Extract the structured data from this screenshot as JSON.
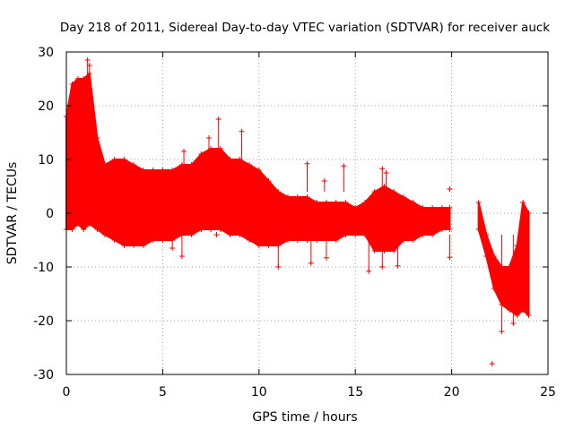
{
  "chart_data": {
    "type": "scatter",
    "title": "Day 218 of 2011, Sidereal Day-to-day VTEC variation (SDTVAR) for receiver auck",
    "xlabel": "GPS time / hours",
    "ylabel": "SDTVAR / TECUs",
    "xlim": [
      0,
      25
    ],
    "ylim": [
      -30,
      30
    ],
    "xticks": [
      0,
      5,
      10,
      15,
      20,
      25
    ],
    "yticks": [
      -30,
      -20,
      -10,
      0,
      10,
      20,
      30
    ],
    "xtick_labels": [
      "0",
      "5",
      "10",
      "15",
      "20",
      "25"
    ],
    "ytick_labels": [
      "-30",
      "-20",
      "-10",
      "0",
      "10",
      "20",
      "30"
    ],
    "grid": true,
    "marker": "plus",
    "color": "#ff0000",
    "series": [
      {
        "name": "SDTVAR",
        "envelope": {
          "x": [
            0.0,
            0.3,
            0.6,
            0.9,
            1.2,
            1.6,
            2.0,
            2.5,
            3.0,
            3.5,
            4.0,
            4.5,
            5.0,
            5.5,
            6.0,
            6.5,
            7.0,
            7.5,
            8.0,
            8.5,
            9.0,
            9.5,
            10.0,
            10.5,
            11.0,
            11.5,
            12.0,
            12.5,
            13.0,
            13.5,
            14.0,
            14.5,
            15.0,
            15.5,
            16.0,
            16.5,
            17.0,
            17.5,
            18.0,
            18.5,
            19.0,
            19.5,
            19.9
          ],
          "upper": [
            18,
            24,
            25,
            25,
            26,
            14,
            9,
            10,
            10,
            9,
            8,
            8,
            8,
            8,
            9,
            9,
            11,
            12,
            12,
            10,
            10,
            9,
            8,
            6,
            4,
            3,
            3,
            3,
            2,
            2,
            2,
            2,
            1,
            2,
            4,
            5,
            4,
            3,
            2,
            1,
            1,
            1,
            1
          ],
          "lower": [
            -3,
            -3,
            -2,
            -3,
            -2,
            -3,
            -4,
            -5,
            -6,
            -6,
            -6,
            -5,
            -5,
            -5,
            -4,
            -4,
            -3,
            -3,
            -3,
            -4,
            -4,
            -5,
            -6,
            -6,
            -6,
            -5,
            -5,
            -5,
            -5,
            -5,
            -5,
            -4,
            -4,
            -4,
            -7,
            -7,
            -7,
            -5,
            -5,
            -4,
            -4,
            -3,
            -3
          ]
        },
        "envelope_late": {
          "x": [
            21.4,
            21.8,
            22.2,
            22.6,
            23.0,
            23.4,
            23.7,
            24.0
          ],
          "upper": [
            2,
            -4,
            -8,
            -10,
            -10,
            -6,
            2,
            0
          ],
          "lower": [
            -3,
            -8,
            -14,
            -17,
            -18,
            -19,
            -18,
            -19
          ]
        },
        "outliers": [
          {
            "x": 1.1,
            "y": 28.5
          },
          {
            "x": 1.2,
            "y": 27.5
          },
          {
            "x": 7.9,
            "y": 17.5
          },
          {
            "x": 9.1,
            "y": 15.2
          },
          {
            "x": 7.4,
            "y": 14
          },
          {
            "x": 6.1,
            "y": 11.5
          },
          {
            "x": 12.5,
            "y": 9.2
          },
          {
            "x": 14.4,
            "y": 8.8
          },
          {
            "x": 13.4,
            "y": 6
          },
          {
            "x": 16.4,
            "y": 8.3
          },
          {
            "x": 16.6,
            "y": 7.5
          },
          {
            "x": 19.9,
            "y": 4.5
          },
          {
            "x": 5.5,
            "y": -6.5
          },
          {
            "x": 6.0,
            "y": -8
          },
          {
            "x": 7.8,
            "y": -4
          },
          {
            "x": 9.0,
            "y": -3.5
          },
          {
            "x": 11.0,
            "y": -10
          },
          {
            "x": 12.7,
            "y": -9.3
          },
          {
            "x": 13.5,
            "y": -8.3
          },
          {
            "x": 15.7,
            "y": -10.8
          },
          {
            "x": 16.4,
            "y": -10
          },
          {
            "x": 17.2,
            "y": -9.8
          },
          {
            "x": 19.9,
            "y": -8.2
          },
          {
            "x": 22.1,
            "y": -28
          },
          {
            "x": 22.6,
            "y": -22
          },
          {
            "x": 23.2,
            "y": -20.5
          }
        ]
      }
    ]
  }
}
